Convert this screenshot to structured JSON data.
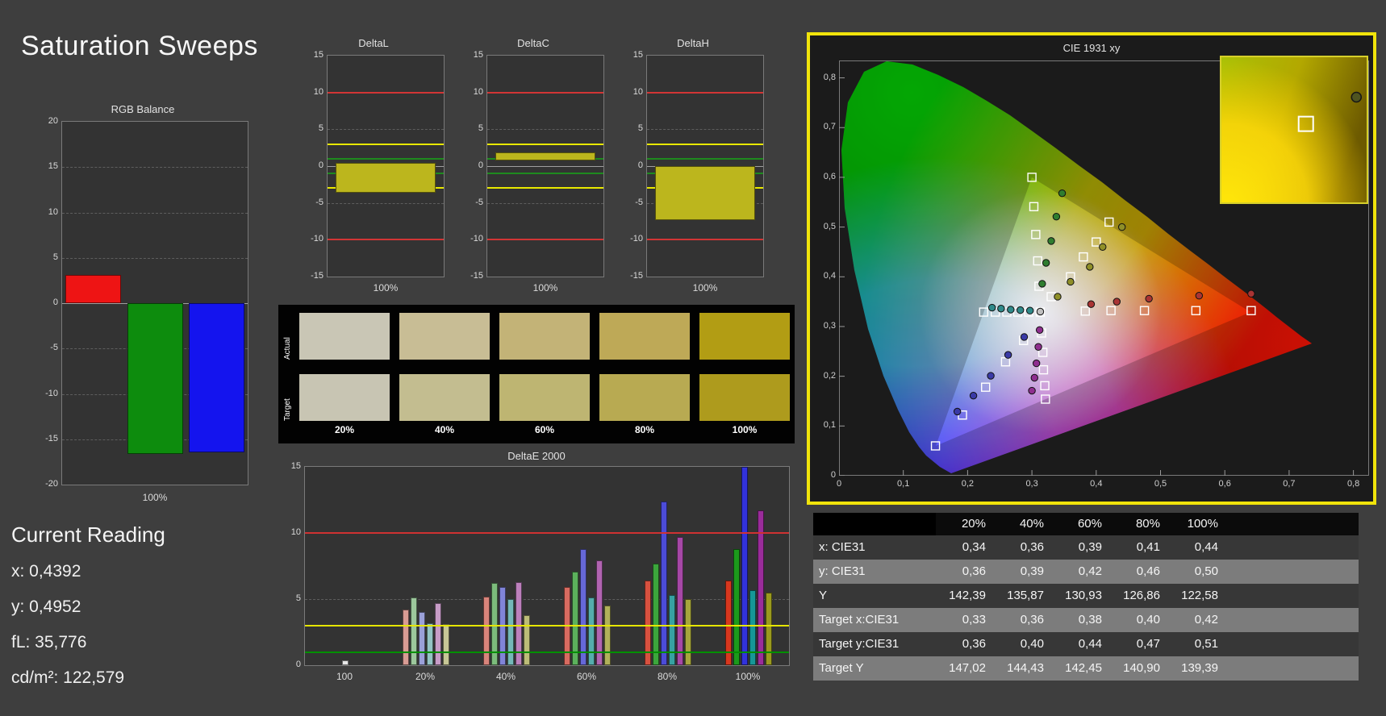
{
  "page": {
    "title": "Saturation Sweeps"
  },
  "current_reading": {
    "heading": "Current Reading",
    "lines": [
      "x: 0,4392",
      "y: 0,4952",
      "fL: 35,776",
      "cd/m²: 122,579"
    ]
  },
  "swatches": {
    "row_labels": [
      "Actual",
      "Target"
    ],
    "column_labels": [
      "20%",
      "40%",
      "60%",
      "80%",
      "100%"
    ],
    "actual_colors": [
      "#c9c6b5",
      "#c8bd95",
      "#c3b377",
      "#bea957",
      "#b29d14"
    ],
    "target_colors": [
      "#c8c5b3",
      "#c3bd90",
      "#beb572",
      "#b8aa52",
      "#ae9b1d"
    ]
  },
  "chart_data": [
    {
      "id": "rgb_balance",
      "type": "bar",
      "title": "RGB Balance",
      "xlabel": "100%",
      "ylim": [
        -20,
        20
      ],
      "ytick_step": 5,
      "categories": [
        "red",
        "green",
        "blue"
      ],
      "values": [
        3.1,
        -16.6,
        -16.4
      ],
      "colors": [
        "#ee1414",
        "#0d8c0d",
        "#1414ee"
      ]
    },
    {
      "id": "deltaL",
      "type": "bar",
      "title": "DeltaL",
      "xlabel": "100%",
      "ylim": [
        -15,
        15
      ],
      "ytick_step": 5,
      "bar": {
        "from": 0.4,
        "to": -3.6
      },
      "bar_color": "#bcb61d",
      "ref_lines": [
        {
          "y": 10,
          "color": "#d23535"
        },
        {
          "y": -10,
          "color": "#d23535"
        },
        {
          "y": 3,
          "color": "#e8e800"
        },
        {
          "y": -3,
          "color": "#e8e800"
        },
        {
          "y": 1,
          "color": "#1e8a1e"
        },
        {
          "y": -1,
          "color": "#1e8a1e"
        }
      ]
    },
    {
      "id": "deltaC",
      "type": "bar",
      "title": "DeltaC",
      "xlabel": "100%",
      "ylim": [
        -15,
        15
      ],
      "ytick_step": 5,
      "bar": {
        "from": 1.9,
        "to": 0.8
      },
      "bar_color": "#bcb61d",
      "ref_lines": [
        {
          "y": 10,
          "color": "#d23535"
        },
        {
          "y": -10,
          "color": "#d23535"
        },
        {
          "y": 3,
          "color": "#e8e800"
        },
        {
          "y": -3,
          "color": "#e8e800"
        },
        {
          "y": 1,
          "color": "#1e8a1e"
        },
        {
          "y": -1,
          "color": "#1e8a1e"
        }
      ]
    },
    {
      "id": "deltaH",
      "type": "bar",
      "title": "DeltaH",
      "xlabel": "100%",
      "ylim": [
        -15,
        15
      ],
      "ytick_step": 5,
      "bar": {
        "from": 0,
        "to": -7.3
      },
      "bar_color": "#bcb61d",
      "ref_lines": [
        {
          "y": 10,
          "color": "#d23535"
        },
        {
          "y": -10,
          "color": "#d23535"
        },
        {
          "y": 3,
          "color": "#e8e800"
        },
        {
          "y": -3,
          "color": "#e8e800"
        },
        {
          "y": 1,
          "color": "#1e8a1e"
        },
        {
          "y": -1,
          "color": "#1e8a1e"
        }
      ]
    },
    {
      "id": "deltaE2000",
      "type": "grouped_bar",
      "title": "DeltaE 2000",
      "ylim": [
        0,
        15
      ],
      "ytick_step": 5,
      "ref_lines": [
        {
          "y": 10,
          "color": "#cf3232"
        },
        {
          "y": 3,
          "color": "#e6e600"
        },
        {
          "y": 1,
          "color": "#009000"
        }
      ],
      "groups": [
        {
          "label": "100",
          "bars": [
            {
              "value": 0.35,
              "color": "#e8e8e8"
            }
          ]
        },
        {
          "label": "20%",
          "bars": [
            {
              "value": 4.2,
              "color": "#d89c94"
            },
            {
              "value": 5.1,
              "color": "#9cc79c"
            },
            {
              "value": 4.0,
              "color": "#9aa0d8"
            },
            {
              "value": 3.2,
              "color": "#93c4c4"
            },
            {
              "value": 4.7,
              "color": "#c79cc7"
            },
            {
              "value": 3.1,
              "color": "#c7c796"
            }
          ]
        },
        {
          "label": "40%",
          "bars": [
            {
              "value": 5.2,
              "color": "#d8847b"
            },
            {
              "value": 6.2,
              "color": "#7cbc7c"
            },
            {
              "value": 5.9,
              "color": "#8084d8"
            },
            {
              "value": 5.0,
              "color": "#74b8b8"
            },
            {
              "value": 6.3,
              "color": "#bc80bc"
            },
            {
              "value": 3.8,
              "color": "#bcbc78"
            }
          ]
        },
        {
          "label": "60%",
          "bars": [
            {
              "value": 5.9,
              "color": "#d86b60"
            },
            {
              "value": 7.1,
              "color": "#5cb15c"
            },
            {
              "value": 8.8,
              "color": "#6668d8"
            },
            {
              "value": 5.1,
              "color": "#55adad"
            },
            {
              "value": 7.9,
              "color": "#b164b1"
            },
            {
              "value": 4.5,
              "color": "#b1b15a"
            }
          ]
        },
        {
          "label": "80%",
          "bars": [
            {
              "value": 6.4,
              "color": "#d8513f"
            },
            {
              "value": 7.7,
              "color": "#3ca63c"
            },
            {
              "value": 12.4,
              "color": "#4c4cd8"
            },
            {
              "value": 5.3,
              "color": "#36a2a2"
            },
            {
              "value": 9.7,
              "color": "#a648a6"
            },
            {
              "value": 5.0,
              "color": "#a6a63c"
            }
          ]
        },
        {
          "label": "100%",
          "bars": [
            {
              "value": 6.4,
              "color": "#d8371e"
            },
            {
              "value": 8.8,
              "color": "#1c9a1c"
            },
            {
              "value": 15.3,
              "color": "#3232dc"
            },
            {
              "value": 5.7,
              "color": "#179797"
            },
            {
              "value": 11.7,
              "color": "#9a2c9a"
            },
            {
              "value": 5.5,
              "color": "#9a9a1e"
            }
          ]
        }
      ]
    },
    {
      "id": "cie1931",
      "type": "scatter",
      "title": "CIE 1931 xy",
      "xlim": [
        0,
        0.82
      ],
      "ylim": [
        0,
        0.835
      ],
      "xticks": [
        {
          "v": 0,
          "label": "0"
        },
        {
          "v": 0.1,
          "label": "0,1"
        },
        {
          "v": 0.2,
          "label": "0,2"
        },
        {
          "v": 0.3,
          "label": "0,3"
        },
        {
          "v": 0.4,
          "label": "0,4"
        },
        {
          "v": 0.5,
          "label": "0,5"
        },
        {
          "v": 0.6,
          "label": "0,6"
        },
        {
          "v": 0.7,
          "label": "0,7"
        },
        {
          "v": 0.8,
          "label": "0,8"
        }
      ],
      "yticks": [
        {
          "v": 0,
          "label": "0"
        },
        {
          "v": 0.1,
          "label": "0,1"
        },
        {
          "v": 0.2,
          "label": "0,2"
        },
        {
          "v": 0.3,
          "label": "0,3"
        },
        {
          "v": 0.4,
          "label": "0,4"
        },
        {
          "v": 0.5,
          "label": "0,5"
        },
        {
          "v": 0.6,
          "label": "0,6"
        },
        {
          "v": 0.7,
          "label": "0,7"
        },
        {
          "v": 0.8,
          "label": "0,8"
        }
      ],
      "targets": [
        {
          "x": 0.313,
          "y": 0.329
        },
        {
          "x": 0.383,
          "y": 0.331
        },
        {
          "x": 0.423,
          "y": 0.332
        },
        {
          "x": 0.475,
          "y": 0.332
        },
        {
          "x": 0.555,
          "y": 0.332
        },
        {
          "x": 0.641,
          "y": 0.332
        },
        {
          "x": 0.311,
          "y": 0.381
        },
        {
          "x": 0.309,
          "y": 0.432
        },
        {
          "x": 0.306,
          "y": 0.485
        },
        {
          "x": 0.303,
          "y": 0.541
        },
        {
          "x": 0.3,
          "y": 0.6
        },
        {
          "x": 0.287,
          "y": 0.272
        },
        {
          "x": 0.259,
          "y": 0.229
        },
        {
          "x": 0.228,
          "y": 0.178
        },
        {
          "x": 0.192,
          "y": 0.122
        },
        {
          "x": 0.15,
          "y": 0.06
        },
        {
          "x": 0.295,
          "y": 0.329
        },
        {
          "x": 0.278,
          "y": 0.329
        },
        {
          "x": 0.261,
          "y": 0.329
        },
        {
          "x": 0.243,
          "y": 0.329
        },
        {
          "x": 0.225,
          "y": 0.329
        },
        {
          "x": 0.315,
          "y": 0.287
        },
        {
          "x": 0.317,
          "y": 0.248
        },
        {
          "x": 0.318,
          "y": 0.213
        },
        {
          "x": 0.32,
          "y": 0.181
        },
        {
          "x": 0.321,
          "y": 0.154
        },
        {
          "x": 0.33,
          "y": 0.36
        },
        {
          "x": 0.36,
          "y": 0.4
        },
        {
          "x": 0.38,
          "y": 0.44
        },
        {
          "x": 0.4,
          "y": 0.47
        },
        {
          "x": 0.42,
          "y": 0.51
        }
      ],
      "measurements": [
        {
          "x": 0.313,
          "y": 0.33,
          "color": "#c0c0c0"
        },
        {
          "x": 0.392,
          "y": 0.345,
          "color": "#a93434"
        },
        {
          "x": 0.432,
          "y": 0.35,
          "color": "#a93434"
        },
        {
          "x": 0.482,
          "y": 0.356,
          "color": "#a93434"
        },
        {
          "x": 0.56,
          "y": 0.362,
          "color": "#a93434"
        },
        {
          "x": 0.641,
          "y": 0.366,
          "color": "#a93434"
        },
        {
          "x": 0.316,
          "y": 0.386,
          "color": "#2f7d2f"
        },
        {
          "x": 0.322,
          "y": 0.428,
          "color": "#2f7d2f"
        },
        {
          "x": 0.33,
          "y": 0.472,
          "color": "#2f7d2f"
        },
        {
          "x": 0.338,
          "y": 0.521,
          "color": "#2f7d2f"
        },
        {
          "x": 0.347,
          "y": 0.568,
          "color": "#2f7d2f"
        },
        {
          "x": 0.288,
          "y": 0.279,
          "color": "#3a3aa6"
        },
        {
          "x": 0.263,
          "y": 0.243,
          "color": "#3a3aa6"
        },
        {
          "x": 0.236,
          "y": 0.201,
          "color": "#3a3aa6"
        },
        {
          "x": 0.209,
          "y": 0.161,
          "color": "#3a3aa6"
        },
        {
          "x": 0.184,
          "y": 0.129,
          "color": "#3a3aa6"
        },
        {
          "x": 0.297,
          "y": 0.332,
          "color": "#2f8a8a"
        },
        {
          "x": 0.282,
          "y": 0.333,
          "color": "#2f8a8a"
        },
        {
          "x": 0.267,
          "y": 0.334,
          "color": "#2f8a8a"
        },
        {
          "x": 0.252,
          "y": 0.336,
          "color": "#2f8a8a"
        },
        {
          "x": 0.238,
          "y": 0.338,
          "color": "#2f8a8a"
        },
        {
          "x": 0.312,
          "y": 0.293,
          "color": "#8f2f8f"
        },
        {
          "x": 0.31,
          "y": 0.259,
          "color": "#8f2f8f"
        },
        {
          "x": 0.307,
          "y": 0.226,
          "color": "#8f2f8f"
        },
        {
          "x": 0.304,
          "y": 0.197,
          "color": "#8f2f8f"
        },
        {
          "x": 0.3,
          "y": 0.171,
          "color": "#8f2f8f"
        },
        {
          "x": 0.34,
          "y": 0.36,
          "color": "#8f8f28"
        },
        {
          "x": 0.36,
          "y": 0.39,
          "color": "#8f8f28"
        },
        {
          "x": 0.39,
          "y": 0.42,
          "color": "#8f8f28"
        },
        {
          "x": 0.41,
          "y": 0.46,
          "color": "#8f8f28"
        },
        {
          "x": 0.44,
          "y": 0.5,
          "color": "#8f8f28"
        }
      ],
      "inset": {
        "square": {
          "fx": 0.58,
          "fy": 0.46
        },
        "dot": {
          "fx": 0.92,
          "fy": 0.28
        }
      }
    },
    {
      "id": "saturation_table",
      "type": "table",
      "header": [
        "20%",
        "40%",
        "60%",
        "80%",
        "100%"
      ],
      "rows": [
        {
          "label": "x: CIE31",
          "values": [
            "0,34",
            "0,36",
            "0,39",
            "0,41",
            "0,44"
          ]
        },
        {
          "label": "y: CIE31",
          "values": [
            "0,36",
            "0,39",
            "0,42",
            "0,46",
            "0,50"
          ]
        },
        {
          "label": "Y",
          "values": [
            "142,39",
            "135,87",
            "130,93",
            "126,86",
            "122,58"
          ]
        },
        {
          "label": "Target x:CIE31",
          "values": [
            "0,33",
            "0,36",
            "0,38",
            "0,40",
            "0,42"
          ]
        },
        {
          "label": "Target y:CIE31",
          "values": [
            "0,36",
            "0,40",
            "0,44",
            "0,47",
            "0,51"
          ]
        },
        {
          "label": "Target Y",
          "values": [
            "147,02",
            "144,43",
            "142,45",
            "140,90",
            "139,39"
          ]
        }
      ]
    }
  ]
}
